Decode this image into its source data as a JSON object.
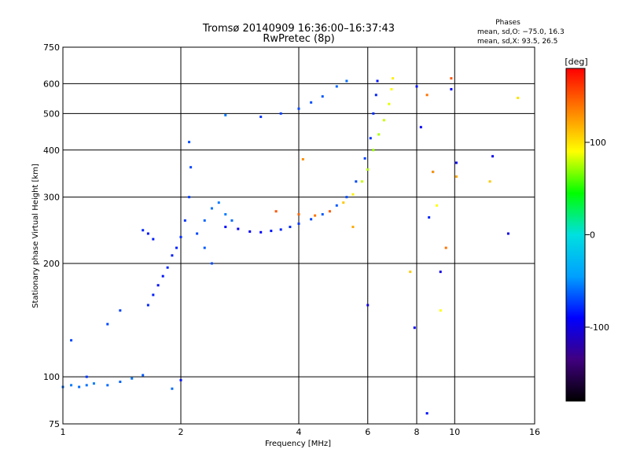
{
  "chart_data": {
    "type": "scatter",
    "title": "Tromsø 20140909 16:36:00–16:37:43",
    "subtitle": "RwPretec (8p)",
    "xlabel": "Frequency [MHz]",
    "ylabel": "Stationary phase Virtual Height [km]",
    "x_scale": "log",
    "y_scale": "log",
    "xlim": [
      1,
      16
    ],
    "ylim": [
      75,
      750
    ],
    "x_ticks": [
      1,
      2,
      4,
      6,
      8,
      10,
      16
    ],
    "y_ticks": [
      75,
      100,
      200,
      300,
      400,
      500,
      600,
      750
    ],
    "x_tick_labels": [
      "1",
      "2",
      "4",
      "6",
      "8",
      "10",
      "16"
    ],
    "y_tick_labels": [
      "75",
      "100",
      "200",
      "300",
      "400",
      "500",
      "600",
      "750"
    ],
    "x_grid": [
      1,
      2,
      4,
      6,
      8,
      10,
      16
    ],
    "y_grid": [
      75,
      100,
      200,
      300,
      400,
      500,
      600,
      750
    ],
    "grid": true,
    "stats": {
      "header": "Phases",
      "line1": "mean, sd,O: −75.0, 16.3",
      "line2": "mean, sd,X:  93.5, 26.5"
    },
    "colorbar": {
      "label": "[deg]",
      "range": [
        -180,
        180
      ],
      "ticks": [
        100,
        0,
        -100
      ],
      "tick_labels": [
        "100",
        "0",
        "-100"
      ],
      "colors": [
        "#000000",
        "#400080",
        "#0000ff",
        "#00a0ff",
        "#00e0e0",
        "#00ff00",
        "#ffff00",
        "#ff8000",
        "#ff0000"
      ]
    },
    "series": [
      {
        "values": [
          [
            1.0,
            94,
            -60
          ],
          [
            1.05,
            95,
            -55
          ],
          [
            1.1,
            94,
            -60
          ],
          [
            1.15,
            95,
            -58
          ],
          [
            1.2,
            96,
            -55
          ],
          [
            1.3,
            95,
            -60
          ],
          [
            1.4,
            97,
            -62
          ],
          [
            1.5,
            99,
            -58
          ],
          [
            1.6,
            101,
            -65
          ],
          [
            1.05,
            125,
            -70
          ],
          [
            1.3,
            138,
            -70
          ],
          [
            1.4,
            150,
            -72
          ],
          [
            1.6,
            245,
            -80
          ],
          [
            1.65,
            240,
            -85
          ],
          [
            1.7,
            232,
            -82
          ],
          [
            1.65,
            155,
            -80
          ],
          [
            1.7,
            165,
            -82
          ],
          [
            1.75,
            175,
            -85
          ],
          [
            1.8,
            185,
            -85
          ],
          [
            1.85,
            195,
            -80
          ],
          [
            1.9,
            210,
            -82
          ],
          [
            1.95,
            220,
            -80
          ],
          [
            2.0,
            235,
            -78
          ],
          [
            2.05,
            260,
            -75
          ],
          [
            2.1,
            300,
            -72
          ],
          [
            2.12,
            360,
            -70
          ],
          [
            2.1,
            420,
            -68
          ],
          [
            2.2,
            240,
            -70
          ],
          [
            2.3,
            260,
            -62
          ],
          [
            2.4,
            280,
            -58
          ],
          [
            2.5,
            290,
            -55
          ],
          [
            2.6,
            270,
            -55
          ],
          [
            2.7,
            260,
            -60
          ],
          [
            2.3,
            220,
            -65
          ],
          [
            2.4,
            200,
            -68
          ],
          [
            2.6,
            250,
            -88
          ],
          [
            2.8,
            247,
            -90
          ],
          [
            3.0,
            243,
            -92
          ],
          [
            3.2,
            242,
            -90
          ],
          [
            3.4,
            244,
            -85
          ],
          [
            3.6,
            246,
            -80
          ],
          [
            3.8,
            250,
            -78
          ],
          [
            4.0,
            255,
            -75
          ],
          [
            4.3,
            262,
            -70
          ],
          [
            4.6,
            270,
            -65
          ],
          [
            5.0,
            285,
            -65
          ],
          [
            5.3,
            300,
            -68
          ],
          [
            5.6,
            330,
            -70
          ],
          [
            5.9,
            380,
            -72
          ],
          [
            6.1,
            430,
            -75
          ],
          [
            6.2,
            500,
            -78
          ],
          [
            6.3,
            560,
            -80
          ],
          [
            6.35,
            610,
            -85
          ],
          [
            2.6,
            495,
            -55
          ],
          [
            3.2,
            490,
            -75
          ],
          [
            3.6,
            500,
            -72
          ],
          [
            4.0,
            515,
            -70
          ],
          [
            4.3,
            535,
            -68
          ],
          [
            4.6,
            555,
            -66
          ],
          [
            5.0,
            590,
            -62
          ],
          [
            5.3,
            610,
            -60
          ],
          [
            1.15,
            100,
            -75
          ],
          [
            1.9,
            93,
            -60
          ],
          [
            2.0,
            98,
            -85
          ],
          [
            6.0,
            155,
            -100
          ],
          [
            7.9,
            135,
            -95
          ],
          [
            8.2,
            460,
            -90
          ],
          [
            8.8,
            350,
            -90
          ],
          [
            8.5,
            80,
            -85
          ],
          [
            9.2,
            190,
            -100
          ],
          [
            12.5,
            385,
            -95
          ],
          [
            13.7,
            240,
            -100
          ],
          [
            8.0,
            590,
            -85
          ],
          [
            9.8,
            580,
            -90
          ],
          [
            10.1,
            370,
            -95
          ],
          [
            8.6,
            265,
            -80
          ]
        ]
      },
      {
        "values": [
          [
            3.5,
            275,
            150
          ],
          [
            4.0,
            270,
            145
          ],
          [
            4.4,
            268,
            140
          ],
          [
            4.8,
            275,
            148
          ],
          [
            5.2,
            290,
            110
          ],
          [
            5.5,
            305,
            95
          ],
          [
            5.8,
            330,
            80
          ],
          [
            6.0,
            355,
            75
          ],
          [
            6.2,
            400,
            72
          ],
          [
            6.4,
            440,
            75
          ],
          [
            6.6,
            480,
            80
          ],
          [
            6.8,
            530,
            85
          ],
          [
            6.9,
            580,
            90
          ],
          [
            6.95,
            620,
            95
          ],
          [
            4.1,
            378,
            130
          ],
          [
            5.5,
            250,
            120
          ],
          [
            7.7,
            190,
            110
          ],
          [
            8.5,
            560,
            140
          ],
          [
            9.0,
            285,
            90
          ],
          [
            9.8,
            620,
            150
          ],
          [
            10.1,
            340,
            120
          ],
          [
            12.3,
            330,
            110
          ],
          [
            14.5,
            550,
            100
          ],
          [
            9.2,
            150,
            90
          ],
          [
            8.8,
            350,
            125
          ],
          [
            9.5,
            220,
            140
          ]
        ]
      }
    ]
  }
}
